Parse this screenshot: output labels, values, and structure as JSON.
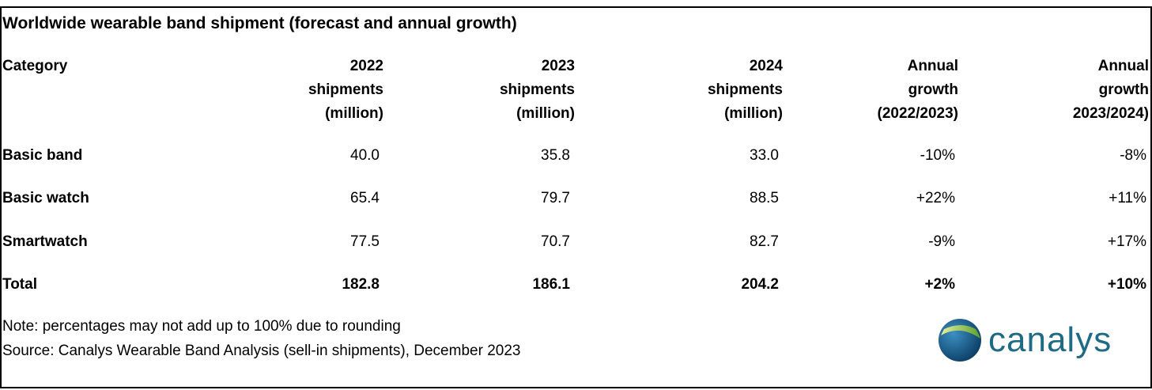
{
  "title": "Worldwide wearable band shipment (forecast and annual growth)",
  "chart_data": {
    "type": "table",
    "title": "Worldwide wearable band shipment (forecast and annual growth)",
    "columns": [
      [
        "Category"
      ],
      [
        "2022",
        "shipments",
        "(million)"
      ],
      [
        "2023",
        "shipments",
        "(million)"
      ],
      [
        "2024",
        "shipments",
        "(million)"
      ],
      [
        "Annual",
        "growth",
        "(2022/2023)"
      ],
      [
        "Annual",
        "growth",
        "2023/2024)"
      ]
    ],
    "rows": [
      {
        "category": "Basic band",
        "values": [
          "40.0",
          "35.8",
          "33.0",
          "-10%",
          "-8%"
        ],
        "bold": false
      },
      {
        "category": "Basic watch",
        "values": [
          "65.4",
          "79.7",
          "88.5",
          "+22%",
          "+11%"
        ],
        "bold": false
      },
      {
        "category": "Smartwatch",
        "values": [
          "77.5",
          "70.7",
          "82.7",
          "-9%",
          "+17%"
        ],
        "bold": false
      },
      {
        "category": "Total",
        "values": [
          "182.8",
          "186.1",
          "204.2",
          "+2%",
          "+10%"
        ],
        "bold": true
      }
    ]
  },
  "notes": {
    "note": "Note: percentages may not add up to 100% due to rounding",
    "source": "Source: Canalys Wearable Band Analysis (sell-in shipments), December 2023"
  },
  "logo": {
    "text": "canalys",
    "color": "#1f6a84"
  }
}
